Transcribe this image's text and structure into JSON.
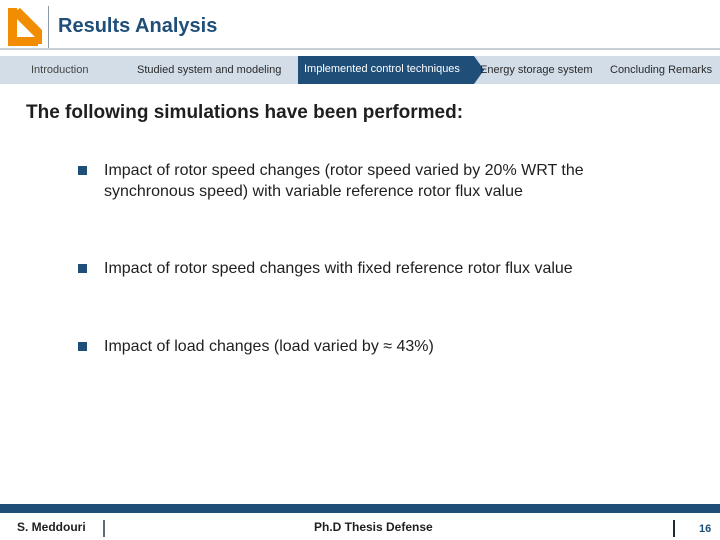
{
  "header": {
    "title": "Results Analysis",
    "logo_icon": "polimi-arrow-logo-icon",
    "accent_color": "#1f4e79",
    "logo_color": "#f28c00"
  },
  "navigation": {
    "items": [
      {
        "label": "Introduction",
        "state": "visited"
      },
      {
        "label": "Studied system and modeling",
        "state": "default"
      },
      {
        "label": "Implemented control techniques",
        "state": "current"
      },
      {
        "label": "Energy storage system",
        "state": "default"
      },
      {
        "label": "Concluding Remarks",
        "state": "default"
      }
    ]
  },
  "main": {
    "lead": "The following simulations have been performed:",
    "bullets": [
      {
        "text": "Impact of rotor speed changes (rotor speed varied by 20% WRT the synchronous speed) with variable reference rotor flux value"
      },
      {
        "text": "Impact of rotor speed changes with fixed reference rotor flux value"
      },
      {
        "text": "Impact of load changes (load varied by ≈ 43%)"
      }
    ]
  },
  "footer": {
    "author": "S. Meddouri",
    "event": "Ph.D Thesis Defense",
    "page_number": "16"
  }
}
